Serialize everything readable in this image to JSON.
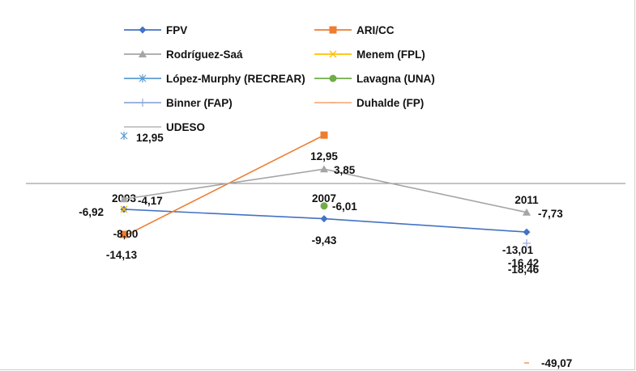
{
  "chart_data": {
    "type": "line",
    "title": "",
    "xlabel": "",
    "ylabel": "",
    "categories": [
      "2003",
      "2007",
      "2011"
    ],
    "ylim": [
      -50,
      20
    ],
    "grid": false,
    "legend_position": "top",
    "series": [
      {
        "name": "FPV",
        "color": "#4472c4",
        "marker": "diamond",
        "values": [
          -6.92,
          -9.43,
          -13.01
        ]
      },
      {
        "name": "ARI/CC",
        "color": "#ed7d31",
        "marker": "square",
        "values": [
          -14.13,
          12.95,
          null
        ]
      },
      {
        "name": "Rodríguez-Saá",
        "color": "#a5a5a5",
        "marker": "triangle",
        "values": [
          -4.17,
          3.85,
          -7.73
        ]
      },
      {
        "name": "Menem (FPL)",
        "color": "#ffc000",
        "marker": "x",
        "values": [
          -8.0,
          null,
          null
        ]
      },
      {
        "name": "López-Murphy (RECREAR)",
        "color": "#5b9bd5",
        "marker": "star",
        "values": [
          12.95,
          null,
          null
        ]
      },
      {
        "name": "Lavagna (UNA)",
        "color": "#70ad47",
        "marker": "circle",
        "values": [
          null,
          -6.01,
          null
        ]
      },
      {
        "name": "Binner (FAP)",
        "color": "#8faadc",
        "marker": "plus",
        "values": [
          null,
          null,
          -18.46
        ]
      },
      {
        "name": "Duhalde (FP)",
        "color": "#f4b183",
        "marker": "dash",
        "values": [
          null,
          null,
          -49.07
        ]
      },
      {
        "name": "UDESO",
        "color": "#bfbfbf",
        "marker": "none",
        "values": [
          null,
          null,
          -16.42
        ]
      }
    ],
    "data_labels": [
      {
        "series": "FPV",
        "category": "2003",
        "text": "-6,92"
      },
      {
        "series": "FPV",
        "category": "2007",
        "text": "-9,43"
      },
      {
        "series": "FPV",
        "category": "2011",
        "text": "-13,01"
      },
      {
        "series": "ARI/CC",
        "category": "2003",
        "text": "-14,13"
      },
      {
        "series": "ARI/CC",
        "category": "2007",
        "text": "12,95"
      },
      {
        "series": "Rodríguez-Saá",
        "category": "2003",
        "text": "-4,17"
      },
      {
        "series": "Rodríguez-Saá",
        "category": "2007",
        "text": "3,85"
      },
      {
        "series": "Rodríguez-Saá",
        "category": "2011",
        "text": "-7,73"
      },
      {
        "series": "Menem (FPL)",
        "category": "2003",
        "text": "-8,00"
      },
      {
        "series": "López-Murphy (RECREAR)",
        "category": "2003",
        "text": "12,95"
      },
      {
        "series": "Lavagna (UNA)",
        "category": "2007",
        "text": "-6,01"
      },
      {
        "series": "Binner (FAP)",
        "category": "2011",
        "text": "-18,46"
      },
      {
        "series": "Duhalde (FP)",
        "category": "2011",
        "text": "-49,07"
      },
      {
        "series": "UDESO",
        "category": "2011",
        "text": "-16,42"
      }
    ]
  }
}
